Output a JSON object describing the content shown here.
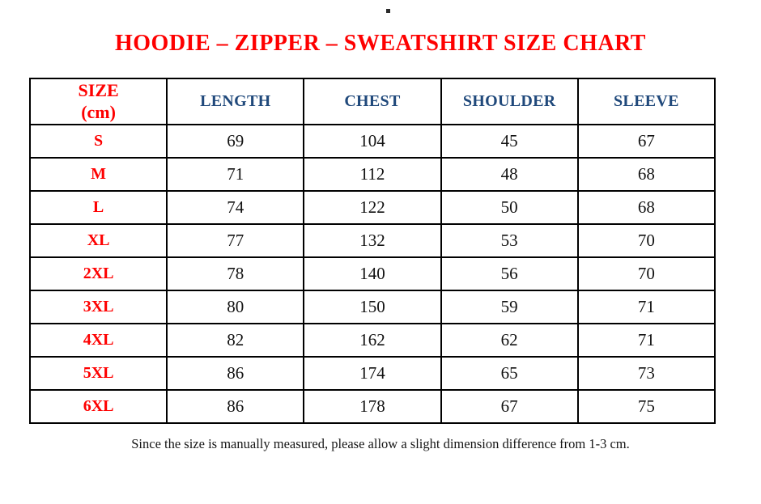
{
  "title": "HOODIE – ZIPPER – SWEATSHIRT SIZE CHART",
  "colors": {
    "title_red": "#fe0000",
    "size_label_red": "#fe0000",
    "header_blue": "#20497b",
    "body_black": "#121212",
    "border_black": "#000000"
  },
  "table": {
    "header": {
      "size_line1": "SIZE",
      "size_line2": "(cm)",
      "columns": [
        "LENGTH",
        "CHEST",
        "SHOULDER",
        "SLEEVE"
      ]
    },
    "rows": [
      {
        "size": "S",
        "length": "69",
        "chest": "104",
        "shoulder": "45",
        "sleeve": "67"
      },
      {
        "size": "M",
        "length": "71",
        "chest": "112",
        "shoulder": "48",
        "sleeve": "68"
      },
      {
        "size": "L",
        "length": "74",
        "chest": "122",
        "shoulder": "50",
        "sleeve": "68"
      },
      {
        "size": "XL",
        "length": "77",
        "chest": "132",
        "shoulder": "53",
        "sleeve": "70"
      },
      {
        "size": "2XL",
        "length": "78",
        "chest": "140",
        "shoulder": "56",
        "sleeve": "70"
      },
      {
        "size": "3XL",
        "length": "80",
        "chest": "150",
        "shoulder": "59",
        "sleeve": "71"
      },
      {
        "size": "4XL",
        "length": "82",
        "chest": "162",
        "shoulder": "62",
        "sleeve": "71"
      },
      {
        "size": "5XL",
        "length": "86",
        "chest": "174",
        "shoulder": "65",
        "sleeve": "73"
      },
      {
        "size": "6XL",
        "length": "86",
        "chest": "178",
        "shoulder": "67",
        "sleeve": "75"
      }
    ]
  },
  "footer_note": "Since the size is manually measured, please allow a slight dimension difference from 1-3 cm."
}
